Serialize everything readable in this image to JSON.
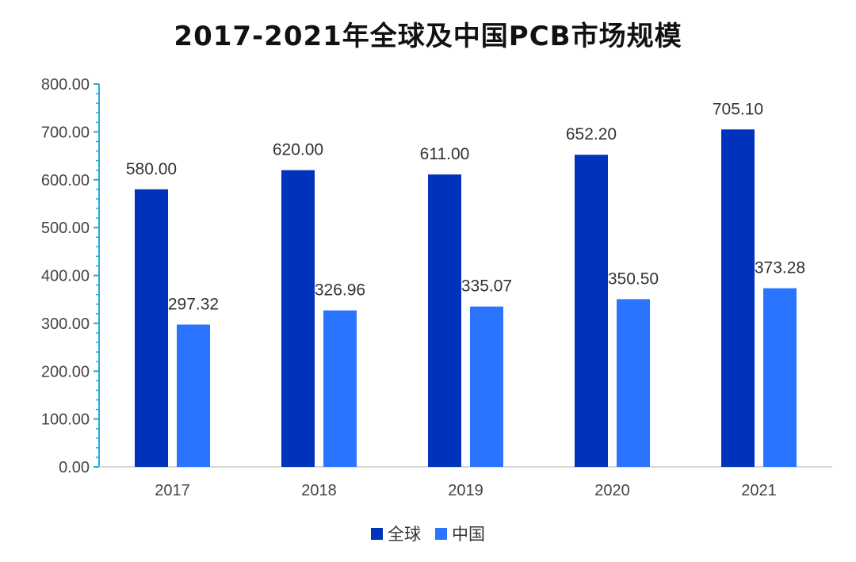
{
  "chart_data": {
    "type": "bar",
    "title": "2017-2021年全球及中国PCB市场规模",
    "categories": [
      "2017",
      "2018",
      "2019",
      "2020",
      "2021"
    ],
    "series": [
      {
        "name": "全球",
        "color": "#0033bb",
        "values": [
          580.0,
          620.0,
          611.0,
          652.2,
          705.1
        ],
        "labels": [
          "580.00",
          "620.00",
          "611.00",
          "652.20",
          "705.10"
        ]
      },
      {
        "name": "中国",
        "color": "#2b74ff",
        "values": [
          297.32,
          326.96,
          335.07,
          350.5,
          373.28
        ],
        "labels": [
          "297.32",
          "326.96",
          "335.07",
          "350.50",
          "373.28"
        ]
      }
    ],
    "ylim": [
      0,
      800
    ],
    "yticks": [
      "0.00",
      "100.00",
      "200.00",
      "300.00",
      "400.00",
      "500.00",
      "600.00",
      "700.00",
      "800.00"
    ],
    "xlabel": "",
    "ylabel": "",
    "legend_position": "bottom-center",
    "grid": false,
    "axis_color": "#29a9e0"
  }
}
